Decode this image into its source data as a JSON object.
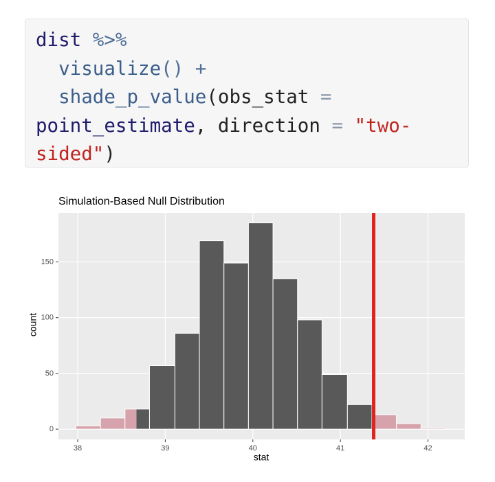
{
  "code": {
    "lines": [
      [
        {
          "text": "dist",
          "color": "#1f1c6b"
        },
        {
          "text": " %>%",
          "color": "#4f6f96"
        }
      ],
      [
        {
          "text": "  visualize",
          "color": "#3c5e8b"
        },
        {
          "text": "() +",
          "color": "#4f6f96"
        }
      ],
      [
        {
          "text": "  shade_p_value",
          "color": "#3c5e8b"
        },
        {
          "text": "(obs_stat",
          "color": "#222222"
        },
        {
          "text": " =",
          "color": "#8a98a8"
        }
      ],
      [
        {
          "text": "point_estimate",
          "color": "#1f1c6b"
        },
        {
          "text": ", direction",
          "color": "#222222"
        },
        {
          "text": " =",
          "color": "#8a98a8"
        },
        {
          "text": " \"two-",
          "color": "#c0241f"
        }
      ],
      [
        {
          "text": "sided\"",
          "color": "#c0241f"
        },
        {
          "text": ")",
          "color": "#222222"
        }
      ]
    ]
  },
  "chart_data": {
    "type": "histogram",
    "title": "Simulation-Based Null Distribution",
    "x_label": "stat",
    "y_label": "count",
    "bins": [
      37.98,
      38.26,
      38.54,
      38.82,
      39.11,
      39.39,
      39.67,
      39.95,
      40.23,
      40.51,
      40.79,
      41.08,
      41.36,
      41.64,
      41.92,
      42.2
    ],
    "values": [
      3,
      10,
      18,
      57,
      86,
      169,
      149,
      185,
      135,
      98,
      49,
      22,
      13,
      5,
      1
    ],
    "color": "#595959",
    "shade_color": "#d6a3ac",
    "line_color": "#e0231c",
    "obs_stat": 41.38,
    "mirror_stat": 38.67,
    "xlim": [
      37.78,
      42.42
    ],
    "xticks": [
      38,
      39,
      40,
      41,
      42
    ],
    "ylim": [
      -9.2,
      194
    ],
    "yticks": [
      0,
      50,
      100,
      150
    ],
    "grid": true
  }
}
